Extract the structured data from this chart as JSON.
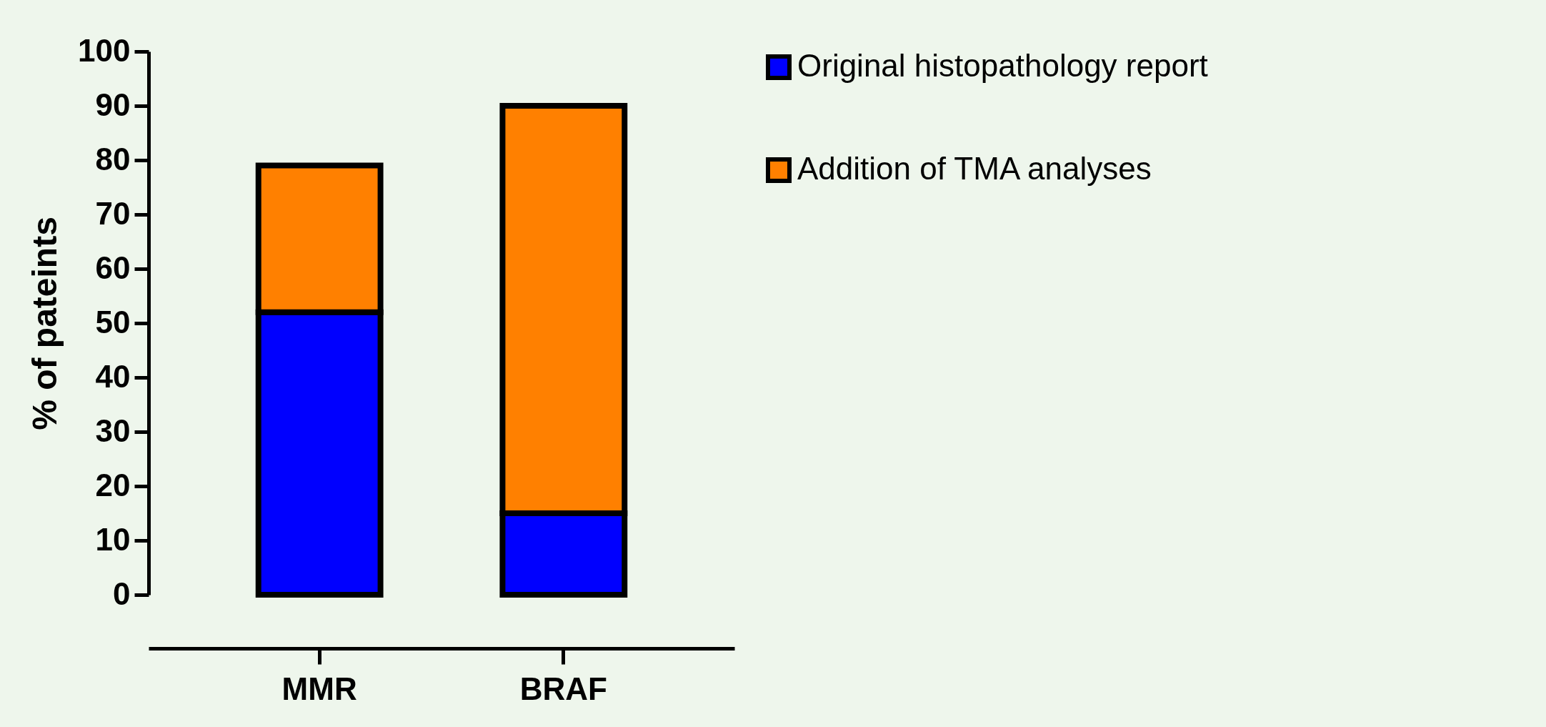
{
  "chart_data": {
    "type": "bar",
    "stacked": true,
    "ylabel": "% of pateints",
    "categories": [
      "MMR",
      "BRAF"
    ],
    "series": [
      {
        "name": "Original histopathology report",
        "color": "#0000ff",
        "values": [
          52,
          15
        ]
      },
      {
        "name": "Addition of TMA analyses",
        "color": "#ff8000",
        "values": [
          27,
          75
        ]
      }
    ],
    "ylim": [
      0,
      100
    ],
    "yticks": [
      0,
      10,
      20,
      30,
      40,
      50,
      60,
      70,
      80,
      90,
      100
    ],
    "grid": false,
    "legend": "right"
  }
}
